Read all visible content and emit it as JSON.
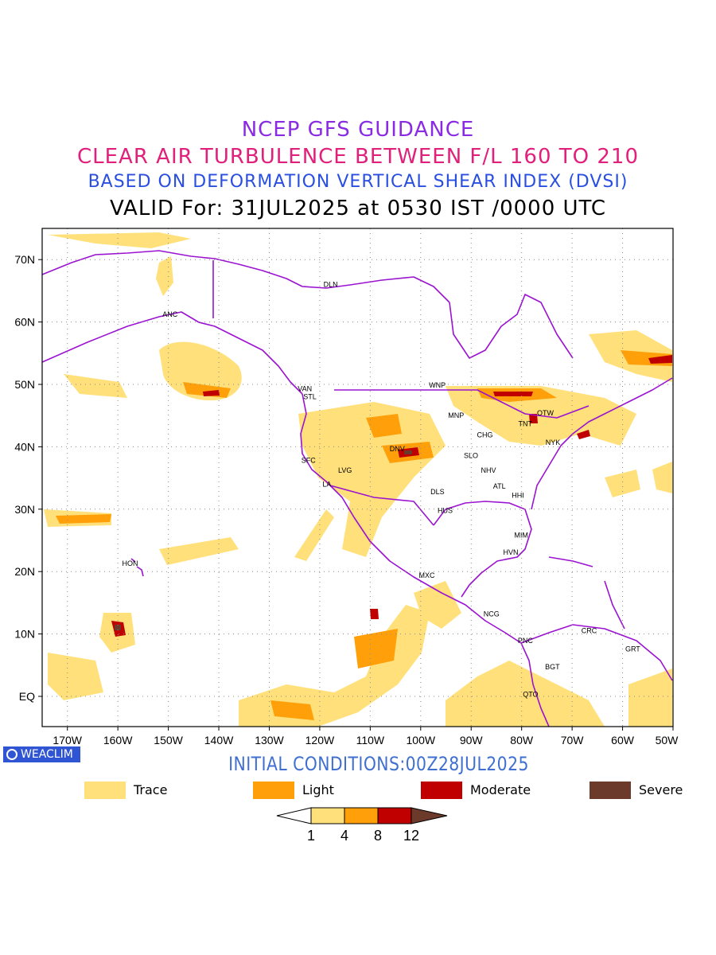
{
  "titles": {
    "line1": "NCEP GFS GUIDANCE",
    "line2": "CLEAR AIR TURBULENCE BETWEEN F/L 160 TO 210",
    "line3": "BASED ON DEFORMATION VERTICAL SHEAR INDEX (DVSI)",
    "line4": "VALID For: 31JUL2025 at 0530 IST /0000 UTC"
  },
  "colors": {
    "title1": "#8a2be2",
    "title2": "#e0207a",
    "title3": "#2a4fe0",
    "coast": "#9b13d1",
    "trace": "#ffe07a",
    "light": "#ffa00a",
    "moderate": "#c00000",
    "severe": "#6b3a2a",
    "grid": "#8c8c8c"
  },
  "map": {
    "lat_labels": [
      "70N",
      "60N",
      "50N",
      "40N",
      "30N",
      "20N",
      "10N",
      "EQ"
    ],
    "lon_labels": [
      "170W",
      "160W",
      "150W",
      "140W",
      "130W",
      "120W",
      "110W",
      "100W",
      "90W",
      "80W",
      "70W",
      "60W",
      "50W"
    ],
    "stations": [
      "ANC",
      "DLN",
      "VAN",
      "STL",
      "WNP",
      "MNP",
      "TNT",
      "OTW",
      "CHG",
      "NYK",
      "DNV",
      "SLO",
      "SFC",
      "LVG",
      "LA",
      "NHV",
      "ATL",
      "HHI",
      "DLS",
      "HUS",
      "MIM",
      "HVN",
      "HON",
      "MXC",
      "NCG",
      "PNC",
      "CRC",
      "GRT",
      "BGT",
      "QTO"
    ]
  },
  "badge": {
    "text": "WEACLIM",
    "icon": "circle-logo-icon"
  },
  "initial_conditions": "INITIAL CONDITIONS:00Z28JUL2025",
  "legend": [
    {
      "label": "Trace",
      "color": "#ffe07a"
    },
    {
      "label": "Light",
      "color": "#ffa00a"
    },
    {
      "label": "Moderate",
      "color": "#c00000"
    },
    {
      "label": "Severe",
      "color": "#6b3a2a"
    }
  ],
  "colorbar": {
    "ticks": [
      "1",
      "4",
      "8",
      "12"
    ]
  }
}
